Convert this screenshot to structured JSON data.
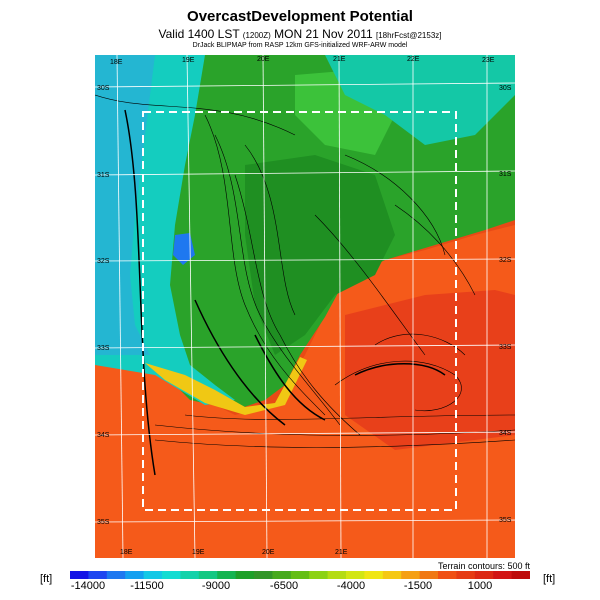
{
  "header": {
    "title": "OvercastDevelopment Potential",
    "subtitle_main": "Valid 1400 LST",
    "subtitle_code": "(1200Z)",
    "subtitle_date": "MON 21 Nov 2011",
    "subtitle_fcst": "[18hrFcst@2153z]",
    "credit": "DrJack BLIPMAP from RASP 12km GFS-initialized WRF-ARW model"
  },
  "map": {
    "lon_labels_top": [
      "18E",
      "19E",
      "20E",
      "21E",
      "22E",
      "23E"
    ],
    "lon_labels_bottom": [
      "18E",
      "19E",
      "20E",
      "21E"
    ],
    "lat_labels_left": [
      "30S",
      "31S",
      "32S",
      "33S",
      "34S",
      "35S"
    ],
    "lat_labels_right": [
      "30S",
      "31S",
      "32S",
      "33S",
      "34S",
      "35S"
    ],
    "contour_note": "Terrain contours: 500 ft",
    "colors": {
      "ocean_deep": "#28b4dc",
      "ocean": "#10d2c8",
      "coast_teal": "#10c8a0",
      "green_light": "#3cc23a",
      "green": "#2aa02a",
      "green_dark": "#168a1e",
      "orange": "#f55a1a",
      "red": "#e83c14",
      "yellow": "#f5d214"
    }
  },
  "colorbar": {
    "unit_left": "[ft]",
    "unit_right": "[ft]",
    "labels": [
      "-14000",
      "-11500",
      "-9000",
      "-6500",
      "-4000",
      "-1500",
      "1000"
    ],
    "colors": [
      "#1414e6",
      "#1e46f0",
      "#1e78f0",
      "#14a0f0",
      "#14c8e6",
      "#14dcd2",
      "#14d2aa",
      "#14c882",
      "#14b450",
      "#1ea028",
      "#329628",
      "#46aa1e",
      "#64be14",
      "#8cd214",
      "#b4dc14",
      "#d2e614",
      "#f0e614",
      "#f5c814",
      "#f5a014",
      "#f07814",
      "#f05014",
      "#e63c14",
      "#dc2814",
      "#d21414",
      "#be0a0a"
    ]
  }
}
